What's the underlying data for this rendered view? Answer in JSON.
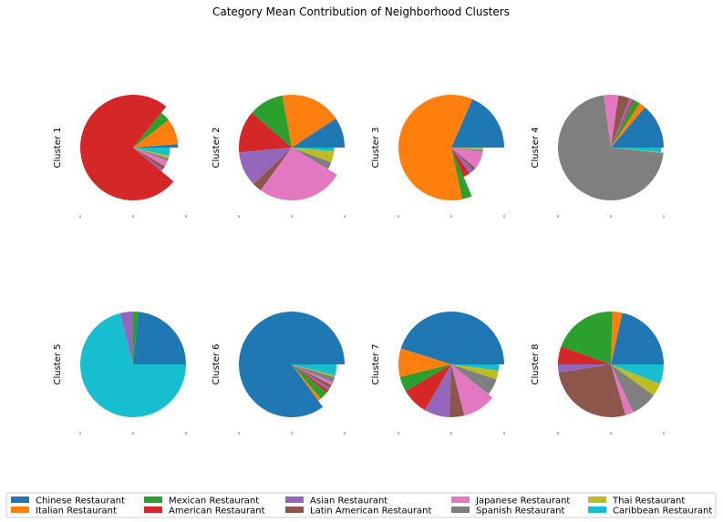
{
  "chart_data": {
    "type": "pie",
    "title": "Category Mean Contribution of Neighborhood Clusters",
    "legend_placement": "bottom",
    "categories": [
      "Chinese Restaurant",
      "Italian Restaurant",
      "Mexican Restaurant",
      "American Restaurant",
      "Asian Restaurant",
      "Latin American Restaurant",
      "Japanese Restaurant",
      "Spanish Restaurant",
      "Thai Restaurant",
      "Caribbean Restaurant"
    ],
    "colors": [
      "#1f77b4",
      "#ff7f0e",
      "#2ca02c",
      "#d62728",
      "#9467bd",
      "#8c564b",
      "#e377c2",
      "#7f7f7f",
      "#bcbd22",
      "#17becf"
    ],
    "series": [
      {
        "name": "Cluster 1",
        "values": [
          0.012,
          0.09,
          0.035,
          0.72,
          0.01,
          0.015,
          0.025,
          0.012,
          0.01,
          0.035
        ],
        "radius": [
          0.85,
          0.85,
          0.85,
          1.0,
          0.7,
          0.7,
          0.7,
          0.7,
          0.7,
          0.7
        ]
      },
      {
        "name": "Cluster 2",
        "values": [
          0.065,
          0.13,
          0.075,
          0.09,
          0.075,
          0.02,
          0.185,
          0.02,
          0.03,
          0.01
        ],
        "radius": [
          1.0,
          1.0,
          1.0,
          1.0,
          1.0,
          1.0,
          1.0,
          0.8,
          0.8,
          0.8
        ]
      },
      {
        "name": "Cluster 3",
        "values": [
          0.185,
          0.6,
          0.03,
          0.035,
          0.025,
          0.015,
          0.09,
          0.01,
          0.01,
          0.002
        ],
        "radius": [
          1.0,
          1.0,
          1.0,
          0.6,
          0.6,
          0.6,
          0.6,
          0.6,
          0.6,
          0.6
        ]
      },
      {
        "name": "Cluster 4",
        "values": [
          0.14,
          0.02,
          0.02,
          0.005,
          0.01,
          0.035,
          0.045,
          0.72,
          0.002,
          0.015
        ],
        "radius": [
          1.0,
          1.0,
          1.0,
          1.0,
          1.0,
          1.0,
          1.0,
          1.0,
          1.0,
          0.95
        ]
      },
      {
        "name": "Cluster 5",
        "values": [
          0.235,
          0.0,
          0.015,
          0.0,
          0.04,
          0.0,
          0.0,
          0.0,
          0.0,
          0.71
        ],
        "radius": [
          1.0,
          1.0,
          1.0,
          1.0,
          1.0,
          1.0,
          1.0,
          1.0,
          1.0,
          1.0
        ]
      },
      {
        "name": "Cluster 6",
        "values": [
          0.85,
          0.012,
          0.03,
          0.01,
          0.01,
          0.012,
          0.01,
          0.02,
          0.006,
          0.04
        ],
        "radius": [
          1.0,
          0.85,
          0.85,
          0.85,
          0.85,
          0.85,
          0.85,
          0.85,
          0.85,
          0.85
        ]
      },
      {
        "name": "Cluster 7",
        "values": [
          0.44,
          0.085,
          0.045,
          0.08,
          0.075,
          0.045,
          0.1,
          0.055,
          0.03,
          0.02
        ],
        "radius": [
          1.0,
          1.0,
          1.0,
          1.0,
          1.0,
          1.0,
          1.0,
          0.9,
          0.9,
          0.9
        ]
      },
      {
        "name": "Cluster 8",
        "values": [
          0.215,
          0.03,
          0.2,
          0.055,
          0.025,
          0.27,
          0.025,
          0.08,
          0.04,
          0.06
        ],
        "radius": [
          1.0,
          1.0,
          1.0,
          1.0,
          1.0,
          1.0,
          1.0,
          1.0,
          1.0,
          1.0
        ]
      }
    ]
  }
}
